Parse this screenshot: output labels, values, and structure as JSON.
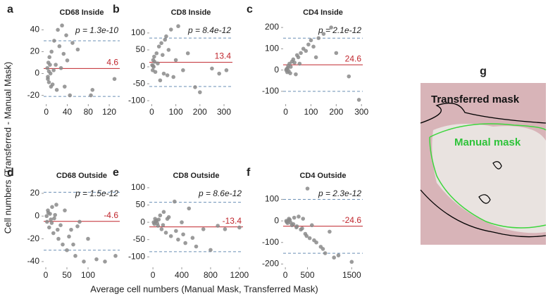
{
  "shared_ylabel": "Cell numbers (Transferred - Manual Mask)",
  "shared_xlabel": "Average cell numbers (Manual Mask, Transferred Mask)",
  "image_panel": {
    "letter": "g",
    "transferred_label": "Transferred mask",
    "manual_label": "Manual mask"
  },
  "chart_data": [
    {
      "type": "scatter",
      "letter": "a",
      "title": "CD68 Inside",
      "annotation": "p = 1.3e-10",
      "x": [
        2,
        3,
        4,
        5,
        5,
        6,
        8,
        10,
        12,
        15,
        18,
        20,
        22,
        25,
        28,
        30,
        33,
        35,
        38,
        40,
        45,
        50,
        60,
        85,
        88,
        130,
        3,
        7,
        9,
        14
      ],
      "values": [
        5,
        -5,
        10,
        2,
        -8,
        15,
        0,
        20,
        -10,
        30,
        8,
        -15,
        40,
        25,
        5,
        44,
        18,
        -12,
        35,
        12,
        -20,
        28,
        22,
        -20,
        -15,
        -5,
        -3,
        8,
        -12,
        3
      ],
      "mean": 4.6,
      "loa": [
        30,
        -21
      ],
      "xlim": [
        -5,
        140
      ],
      "ylim": [
        -28,
        48
      ],
      "xticks": [
        0,
        40,
        80,
        120
      ],
      "yticks": [
        -20,
        0,
        20,
        40
      ],
      "point_color": "#8a8a8a",
      "mean_color": "#c0262d",
      "loa_color": "#6a8fb5"
    },
    {
      "type": "scatter",
      "letter": "b",
      "title": "CD8 Inside",
      "annotation": "p = 8.4e-12",
      "x": [
        2,
        4,
        6,
        8,
        10,
        15,
        20,
        25,
        30,
        40,
        50,
        60,
        70,
        80,
        90,
        100,
        110,
        130,
        150,
        180,
        200,
        250,
        280,
        310,
        5,
        12,
        35,
        45,
        55,
        65
      ],
      "values": [
        5,
        -10,
        20,
        0,
        30,
        -15,
        40,
        10,
        60,
        70,
        -20,
        90,
        50,
        110,
        -30,
        20,
        120,
        -10,
        40,
        -60,
        -75,
        -5,
        -20,
        -10,
        3,
        15,
        -40,
        35,
        80,
        -25
      ],
      "mean": 13.4,
      "loa": [
        85,
        -58
      ],
      "xlim": [
        -10,
        335
      ],
      "ylim": [
        -110,
        135
      ],
      "xticks": [
        0,
        100,
        200,
        300
      ],
      "yticks": [
        -100,
        -50,
        0,
        50,
        100
      ],
      "point_color": "#8a8a8a",
      "mean_color": "#c0262d",
      "loa_color": "#6a8fb5"
    },
    {
      "type": "scatter",
      "letter": "c",
      "title": "CD4 Inside",
      "annotation": "p = 2.1e-12",
      "x": [
        2,
        4,
        6,
        8,
        10,
        12,
        15,
        20,
        25,
        30,
        40,
        50,
        60,
        70,
        80,
        90,
        100,
        110,
        130,
        150,
        180,
        200,
        250,
        290,
        5,
        18,
        35,
        45,
        55,
        120
      ],
      "values": [
        0,
        5,
        -10,
        10,
        20,
        -5,
        30,
        15,
        40,
        50,
        -20,
        60,
        80,
        100,
        90,
        120,
        140,
        110,
        150,
        170,
        200,
        80,
        -30,
        -140,
        3,
        -15,
        35,
        70,
        30,
        60
      ],
      "mean": 24.6,
      "loa": [
        150,
        -100
      ],
      "xlim": [
        -10,
        305
      ],
      "ylim": [
        -160,
        230
      ],
      "xticks": [
        0,
        100,
        200,
        300
      ],
      "yticks": [
        -100,
        0,
        100,
        200
      ],
      "point_color": "#8a8a8a",
      "mean_color": "#c0262d",
      "loa_color": "#6a8fb5"
    },
    {
      "type": "scatter",
      "letter": "d",
      "title": "CD68 Outside",
      "annotation": "p = 1.5e-12",
      "x": [
        2,
        3,
        5,
        8,
        10,
        12,
        15,
        18,
        20,
        25,
        30,
        35,
        40,
        45,
        50,
        60,
        70,
        80,
        90,
        100,
        120,
        140,
        165,
        6,
        14,
        22,
        28,
        55,
        65,
        75
      ],
      "values": [
        0,
        -5,
        5,
        -10,
        2,
        -3,
        8,
        -15,
        -2,
        10,
        -20,
        -8,
        -25,
        5,
        -30,
        -12,
        -35,
        -5,
        -40,
        -20,
        -38,
        -40,
        -35,
        3,
        -6,
        1,
        -12,
        -18,
        -25,
        -9
      ],
      "mean": -4.6,
      "loa": [
        21,
        -30
      ],
      "xlim": [
        -5,
        175
      ],
      "ylim": [
        -45,
        28
      ],
      "xticks": [
        0,
        50,
        100
      ],
      "yticks": [
        -40,
        -20,
        0,
        20
      ],
      "point_color": "#8a8a8a",
      "mean_color": "#c0262d",
      "loa_color": "#6a8fb5"
    },
    {
      "type": "scatter",
      "letter": "e",
      "title": "CD8 Outside",
      "annotation": "p = 8.6e-12",
      "x": [
        10,
        20,
        30,
        50,
        70,
        100,
        120,
        150,
        180,
        200,
        250,
        300,
        350,
        400,
        450,
        500,
        600,
        700,
        800,
        900,
        1000,
        1200,
        40,
        60,
        80,
        140,
        220,
        320,
        420,
        550
      ],
      "values": [
        0,
        -5,
        10,
        5,
        -10,
        20,
        -20,
        30,
        -30,
        10,
        -40,
        60,
        -50,
        0,
        -60,
        40,
        -70,
        -20,
        -80,
        -10,
        -20,
        -15,
        2,
        -3,
        8,
        -8,
        15,
        -25,
        -35,
        -45
      ],
      "mean": -13.4,
      "loa": [
        58,
        -85
      ],
      "xlim": [
        -50,
        1250
      ],
      "ylim": [
        -130,
        110
      ],
      "xticks": [
        0,
        400,
        800,
        1200
      ],
      "yticks": [
        -100,
        -50,
        0,
        50,
        100
      ],
      "point_color": "#8a8a8a",
      "mean_color": "#c0262d",
      "loa_color": "#6a8fb5"
    },
    {
      "type": "scatter",
      "letter": "f",
      "title": "CD4 Outside",
      "annotation": "p = 2.3e-12",
      "x": [
        20,
        50,
        80,
        100,
        150,
        200,
        250,
        300,
        350,
        400,
        450,
        500,
        550,
        600,
        700,
        800,
        900,
        1000,
        1100,
        1200,
        1500,
        30,
        70,
        120,
        180,
        260,
        380,
        480,
        650,
        850
      ],
      "values": [
        0,
        -10,
        10,
        5,
        -20,
        15,
        -30,
        20,
        -40,
        10,
        -60,
        150,
        -80,
        -20,
        -100,
        -120,
        -150,
        -50,
        -170,
        -160,
        -190,
        -5,
        2,
        -8,
        -15,
        -25,
        -35,
        -70,
        -90,
        -130
      ],
      "mean": -24.6,
      "loa": [
        100,
        -150
      ],
      "xlim": [
        -50,
        1750
      ],
      "ylim": [
        -215,
        170
      ],
      "xticks": [
        0,
        500,
        1500
      ],
      "yticks": [
        -200,
        -100,
        0,
        100
      ],
      "point_color": "#8a8a8a",
      "mean_color": "#c0262d",
      "loa_color": "#6a8fb5"
    }
  ]
}
